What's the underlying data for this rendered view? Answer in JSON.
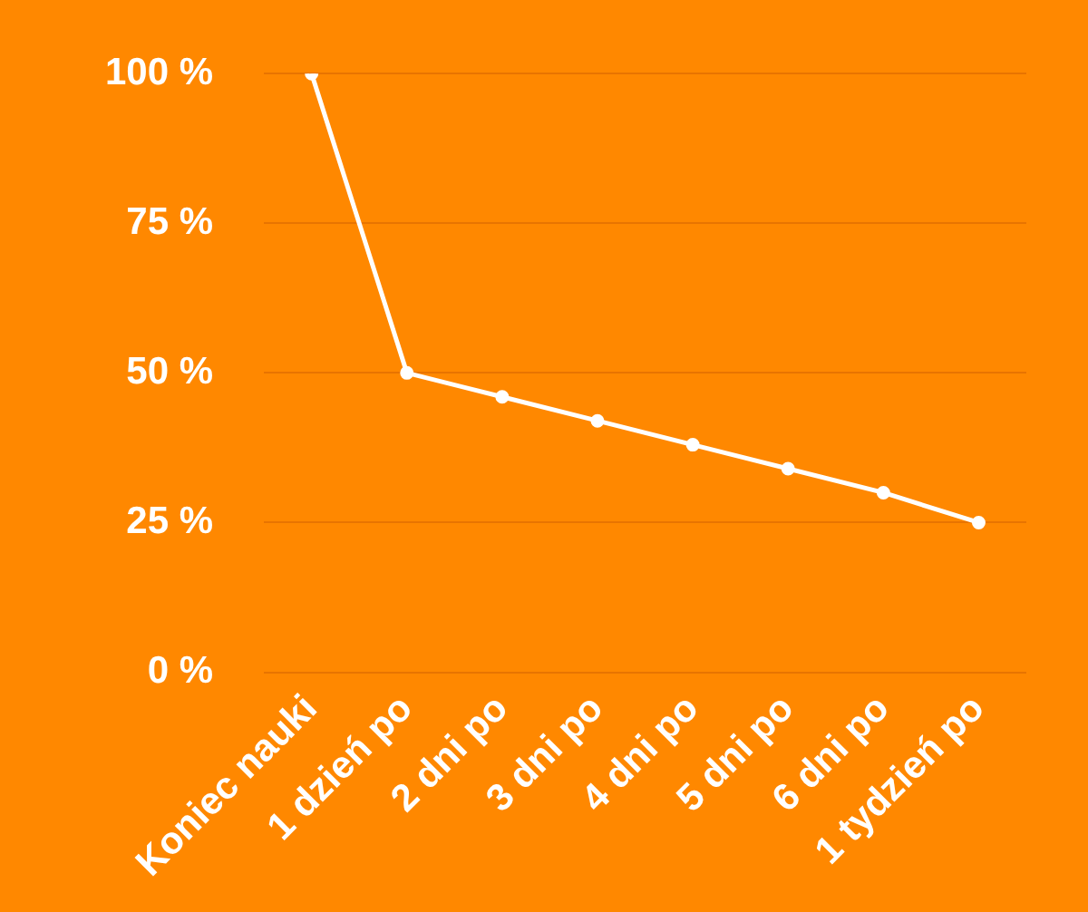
{
  "chart_data": {
    "type": "line",
    "categories": [
      "Koniec nauki",
      "1 dzień po",
      "2 dni po",
      "3 dni po",
      "4 dni po",
      "5 dni po",
      "6 dni po",
      "1 tydzień po"
    ],
    "series": [
      {
        "color": "#ffffff",
        "values": [
          100,
          50,
          46,
          42,
          38,
          34,
          30,
          25
        ]
      }
    ],
    "ylim": [
      0,
      100
    ],
    "yticks": [
      {
        "value": 0,
        "label": "0 %"
      },
      {
        "value": 25,
        "label": "25 %"
      },
      {
        "value": 50,
        "label": "50 %"
      },
      {
        "value": 75,
        "label": "75 %"
      },
      {
        "value": 100,
        "label": "100 %"
      }
    ],
    "grid": "y",
    "legend": false,
    "marker": "circle",
    "line_style": "solid"
  }
}
